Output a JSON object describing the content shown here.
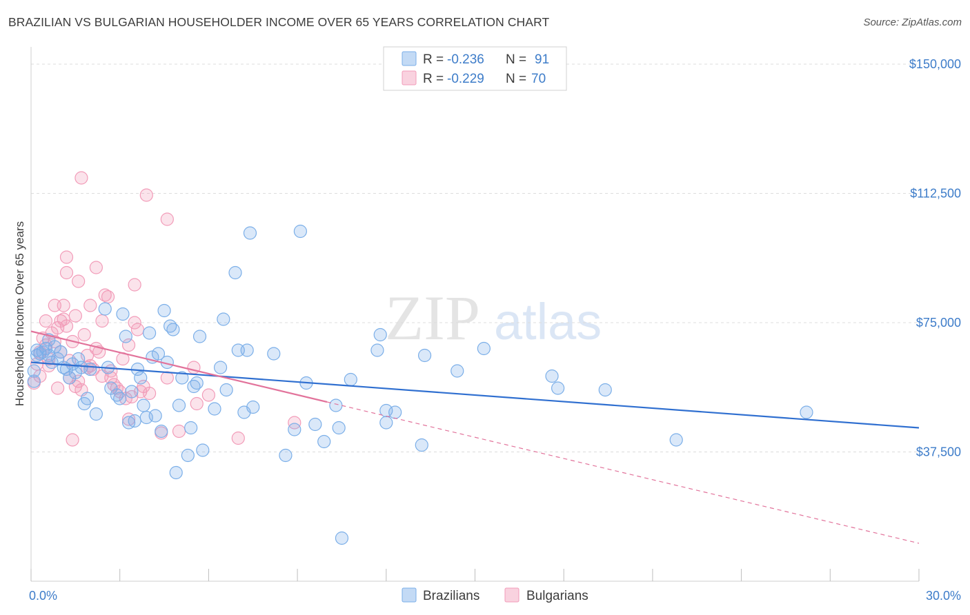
{
  "title": "BRAZILIAN VS BULGARIAN HOUSEHOLDER INCOME OVER 65 YEARS CORRELATION CHART",
  "source": "Source: ZipAtlas.com",
  "watermark": {
    "zip": "ZIP",
    "atlas": "atlas"
  },
  "legend": {
    "r_label": "R =",
    "n_label": "N =",
    "rows": [
      {
        "r": "-0.236",
        "n": "91",
        "color": "#7aaee8"
      },
      {
        "r": "-0.229",
        "n": "70",
        "color": "#f29bb8"
      }
    ]
  },
  "bottom_legend": [
    "Brazilians",
    "Bulgarians"
  ],
  "chart_data": {
    "type": "scatter",
    "title": "BRAZILIAN VS BULGARIAN HOUSEHOLDER INCOME OVER 65 YEARS CORRELATION CHART",
    "xlabel": "",
    "ylabel": "Householder Income Over 65 years",
    "xlim": [
      0,
      30
    ],
    "ylim": [
      0,
      153000
    ],
    "x_tick_labels": [
      "0.0%",
      "30.0%"
    ],
    "y_ticks": [
      37500,
      75000,
      112500,
      150000
    ],
    "y_tick_labels": [
      "$37,500",
      "$75,000",
      "$112,500",
      "$150,000"
    ],
    "grid": true,
    "colors": {
      "Brazilians": "#7aaee8",
      "Bulgarians": "#f29bb8",
      "blue_line": "#2f6fd0",
      "pink_line": "#e2739b"
    },
    "series": [
      {
        "name": "Brazilians",
        "trend": {
          "x0": 0,
          "y0": 63500,
          "x1": 30,
          "y1": 44500
        },
        "points": [
          [
            0.1,
            61000
          ],
          [
            0.1,
            58000
          ],
          [
            0.2,
            67000
          ],
          [
            0.3,
            66000
          ],
          [
            0.4,
            66500
          ],
          [
            0.5,
            67500
          ],
          [
            0.6,
            65500
          ],
          [
            0.6,
            70000
          ],
          [
            0.7,
            63500
          ],
          [
            0.8,
            68000
          ],
          [
            1.0,
            66500
          ],
          [
            1.1,
            62000
          ],
          [
            1.2,
            61500
          ],
          [
            1.3,
            59000
          ],
          [
            1.4,
            63000
          ],
          [
            1.5,
            60500
          ],
          [
            1.6,
            64500
          ],
          [
            1.7,
            62000
          ],
          [
            1.8,
            51500
          ],
          [
            2.0,
            61500
          ],
          [
            2.2,
            48500
          ],
          [
            2.5,
            79000
          ],
          [
            2.6,
            62000
          ],
          [
            2.7,
            56000
          ],
          [
            2.9,
            54000
          ],
          [
            3.0,
            53000
          ],
          [
            3.1,
            77500
          ],
          [
            3.2,
            71000
          ],
          [
            3.3,
            46000
          ],
          [
            3.4,
            55000
          ],
          [
            3.5,
            46500
          ],
          [
            3.6,
            61500
          ],
          [
            3.7,
            59000
          ],
          [
            3.8,
            51000
          ],
          [
            4.0,
            72000
          ],
          [
            4.1,
            65000
          ],
          [
            4.2,
            48000
          ],
          [
            4.3,
            66000
          ],
          [
            4.4,
            43500
          ],
          [
            4.5,
            78500
          ],
          [
            4.6,
            63500
          ],
          [
            4.7,
            74000
          ],
          [
            4.8,
            73000
          ],
          [
            4.9,
            31500
          ],
          [
            5.0,
            51000
          ],
          [
            5.1,
            59000
          ],
          [
            5.3,
            36500
          ],
          [
            5.4,
            44500
          ],
          [
            5.5,
            56500
          ],
          [
            5.6,
            57500
          ],
          [
            5.7,
            71000
          ],
          [
            5.8,
            38000
          ],
          [
            6.2,
            50000
          ],
          [
            6.4,
            62000
          ],
          [
            6.5,
            76000
          ],
          [
            6.6,
            55500
          ],
          [
            6.9,
            89500
          ],
          [
            7.0,
            67000
          ],
          [
            7.2,
            49000
          ],
          [
            7.3,
            67000
          ],
          [
            7.4,
            101000
          ],
          [
            7.5,
            50500
          ],
          [
            8.2,
            66000
          ],
          [
            8.6,
            36500
          ],
          [
            8.9,
            44000
          ],
          [
            9.1,
            101500
          ],
          [
            9.3,
            57500
          ],
          [
            9.6,
            45500
          ],
          [
            9.9,
            40500
          ],
          [
            10.3,
            51000
          ],
          [
            10.4,
            44500
          ],
          [
            10.5,
            12500
          ],
          [
            10.8,
            58500
          ],
          [
            11.7,
            67000
          ],
          [
            11.8,
            71500
          ],
          [
            12.0,
            49500
          ],
          [
            12.0,
            46000
          ],
          [
            12.3,
            49000
          ],
          [
            13.2,
            39500
          ],
          [
            13.3,
            65500
          ],
          [
            14.4,
            61000
          ],
          [
            15.3,
            67500
          ],
          [
            17.6,
            59500
          ],
          [
            17.8,
            56000
          ],
          [
            19.4,
            55500
          ],
          [
            21.8,
            41000
          ],
          [
            26.2,
            49000
          ],
          [
            0.2,
            65500
          ],
          [
            0.9,
            64500
          ],
          [
            1.9,
            53000
          ],
          [
            3.9,
            47500
          ]
        ]
      },
      {
        "name": "Bulgarians",
        "trend": {
          "x0": 0,
          "y0": 72500,
          "x1": 10.0,
          "y1": 52000
        },
        "trend_dashed": {
          "x0": 10.0,
          "y0": 52000,
          "x1": 30,
          "y1": 11000
        },
        "points": [
          [
            0.1,
            57500
          ],
          [
            0.2,
            63000
          ],
          [
            0.3,
            66500
          ],
          [
            0.4,
            70500
          ],
          [
            0.5,
            68500
          ],
          [
            0.5,
            75500
          ],
          [
            0.6,
            64500
          ],
          [
            0.7,
            72000
          ],
          [
            0.8,
            69500
          ],
          [
            0.8,
            80000
          ],
          [
            0.9,
            56000
          ],
          [
            1.0,
            75500
          ],
          [
            1.0,
            66500
          ],
          [
            1.1,
            80000
          ],
          [
            1.1,
            76000
          ],
          [
            1.2,
            74000
          ],
          [
            1.2,
            89500
          ],
          [
            1.2,
            94000
          ],
          [
            1.3,
            59000
          ],
          [
            1.4,
            69500
          ],
          [
            1.4,
            41000
          ],
          [
            1.5,
            77000
          ],
          [
            1.5,
            56500
          ],
          [
            1.6,
            87000
          ],
          [
            1.6,
            58000
          ],
          [
            1.7,
            117000
          ],
          [
            1.8,
            71500
          ],
          [
            1.9,
            65500
          ],
          [
            1.9,
            62000
          ],
          [
            2.0,
            62500
          ],
          [
            2.0,
            80000
          ],
          [
            2.1,
            61500
          ],
          [
            2.2,
            67500
          ],
          [
            2.2,
            91000
          ],
          [
            2.3,
            66500
          ],
          [
            2.4,
            59500
          ],
          [
            2.4,
            75500
          ],
          [
            2.5,
            83000
          ],
          [
            2.6,
            82500
          ],
          [
            2.7,
            59000
          ],
          [
            2.8,
            57000
          ],
          [
            2.9,
            56000
          ],
          [
            3.0,
            55000
          ],
          [
            3.1,
            64500
          ],
          [
            3.2,
            53000
          ],
          [
            3.3,
            68500
          ],
          [
            3.3,
            47000
          ],
          [
            3.4,
            53500
          ],
          [
            3.5,
            86000
          ],
          [
            3.5,
            75000
          ],
          [
            3.6,
            73000
          ],
          [
            3.7,
            55000
          ],
          [
            3.8,
            56500
          ],
          [
            3.9,
            112000
          ],
          [
            4.0,
            54500
          ],
          [
            4.4,
            43000
          ],
          [
            4.6,
            59000
          ],
          [
            4.6,
            105000
          ],
          [
            5.0,
            43500
          ],
          [
            5.5,
            62000
          ],
          [
            5.6,
            51500
          ],
          [
            6.0,
            54000
          ],
          [
            7.0,
            41500
          ],
          [
            8.9,
            46000
          ],
          [
            0.3,
            59500
          ],
          [
            1.7,
            55500
          ],
          [
            2.7,
            61000
          ],
          [
            0.6,
            62500
          ],
          [
            1.3,
            64000
          ],
          [
            0.9,
            73500
          ]
        ]
      }
    ]
  }
}
